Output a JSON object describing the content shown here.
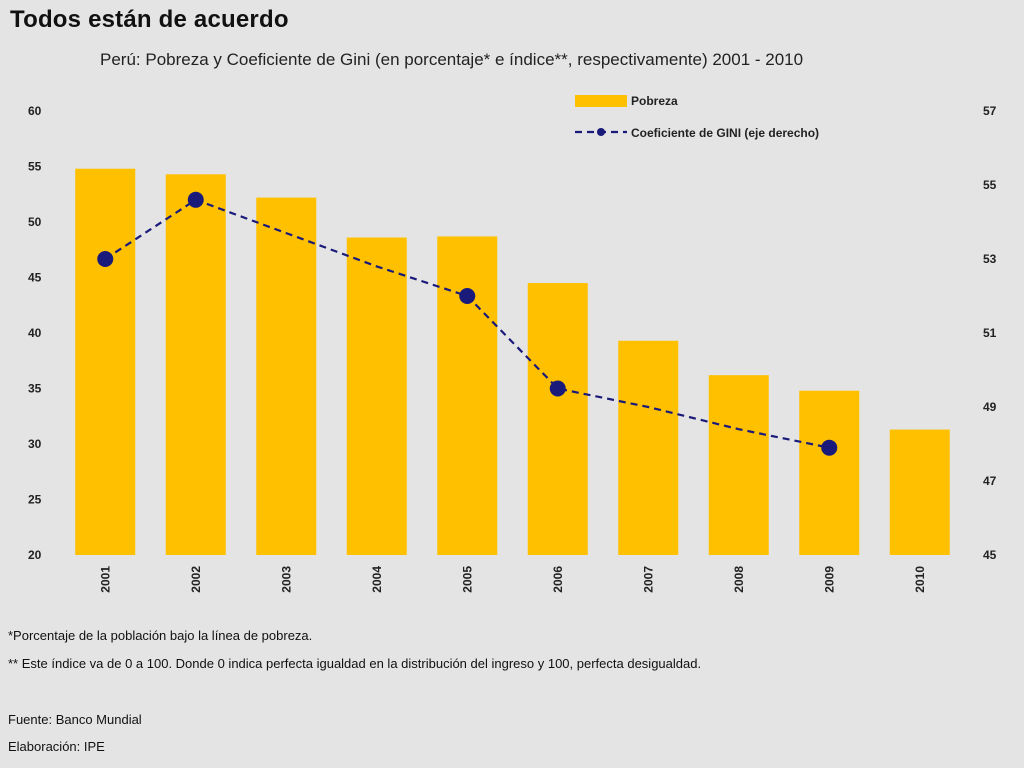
{
  "page": {
    "title": "Todos están de acuerdo",
    "subtitle": "Perú: Pobreza y Coeficiente de Gini (en porcentaje* e índice**, respectivamente) 2001 - 2010",
    "footnotes": [
      "*Porcentaje de la población bajo la línea de pobreza.",
      "** Este índice va de 0 a 100. Donde 0 indica perfecta igualdad en la distribución del ingreso y 100, perfecta desigualdad."
    ],
    "source": "Fuente: Banco Mundial",
    "elaboration": "Elaboración: IPE"
  },
  "chart_data": {
    "type": "bar",
    "title": "Perú: Pobreza y Coeficiente de Gini (en porcentaje* e índice**, respectivamente) 2001 - 2010",
    "categories": [
      "2001",
      "2002",
      "2003",
      "2004",
      "2005",
      "2006",
      "2007",
      "2008",
      "2009",
      "2010"
    ],
    "series": [
      {
        "name": "Pobreza",
        "type": "bar",
        "axis": "left",
        "color": "#ffc000",
        "values": [
          54.8,
          54.3,
          52.2,
          48.6,
          48.7,
          44.5,
          39.3,
          36.2,
          34.8,
          31.3
        ]
      },
      {
        "name": "Coeficiente de GINI (eje derecho)",
        "type": "line",
        "axis": "right",
        "color": "#1a1a7a",
        "line_style": "dashed",
        "values": [
          53.0,
          54.6,
          null,
          null,
          52.0,
          49.5,
          null,
          null,
          47.9,
          null
        ],
        "connected": [
          53.0,
          54.6,
          53.7,
          52.8,
          52.0,
          49.5,
          49.0,
          48.4,
          47.9,
          null
        ]
      }
    ],
    "y_left": {
      "ylim": [
        20,
        60
      ],
      "ticks": [
        60,
        55,
        50,
        45,
        40,
        35,
        30,
        25,
        20
      ]
    },
    "y_right": {
      "ylim": [
        45,
        57
      ],
      "ticks": [
        57,
        55,
        53,
        51,
        49,
        47,
        45
      ]
    },
    "legend": {
      "position": "top-right",
      "entries": [
        "Pobreza",
        "Coeficiente de GINI (eje derecho)"
      ]
    },
    "grid": false
  }
}
